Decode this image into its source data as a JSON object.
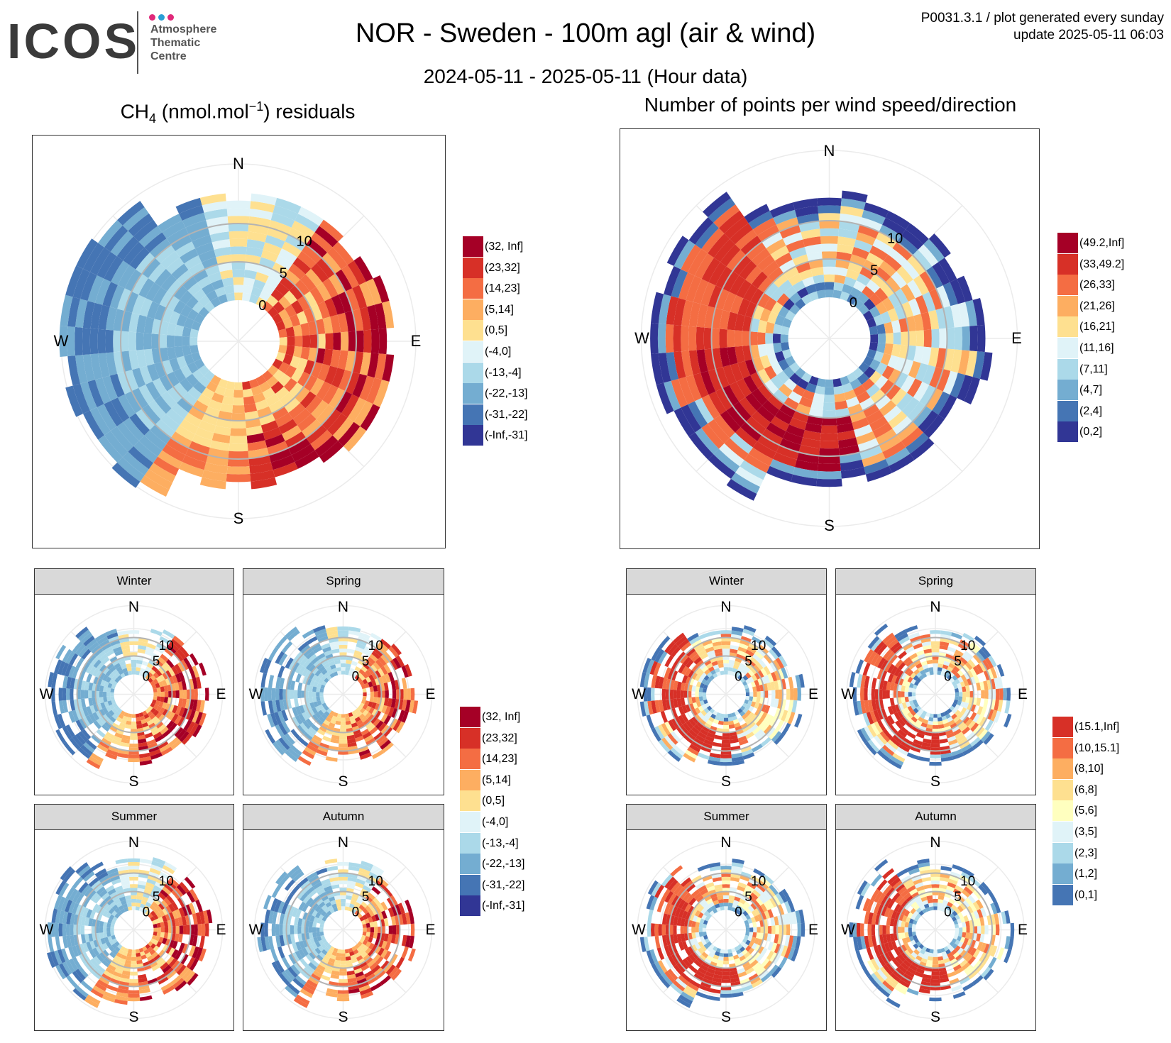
{
  "header": {
    "logo_word": "ICOS",
    "logo_lines": [
      "Atmosphere",
      "Thematic",
      "Centre"
    ],
    "logo_dot_colors": [
      "#e0297a",
      "#2a9fd6",
      "#e0297a"
    ],
    "title": "NOR - Sweden - 100m agl (air & wind)",
    "subtitle": "2024-05-11 - 2025-05-11 (Hour data)",
    "meta_line1": "P0031.3.1 / plot generated every sunday",
    "meta_line2": "update  2025-05-11 06:03"
  },
  "panels": {
    "left_title_prefix": "CH",
    "left_title_sub": "4",
    "left_title_mid": " (nmol.mol",
    "left_title_sup": "−1",
    "left_title_suffix": ") residuals",
    "right_title": "Number of points per wind speed/direction",
    "compass": {
      "n": "N",
      "e": "E",
      "s": "S",
      "w": "W"
    },
    "ring_labels": [
      "0",
      "5",
      "10"
    ],
    "seasons": [
      "Winter",
      "Spring",
      "Summer",
      "Autumn"
    ]
  },
  "legends": {
    "residuals": {
      "labels": [
        "(32, Inf]",
        "(23,32]",
        "(14,23]",
        "(5,14]",
        "(0,5]",
        "(-4,0]",
        "(-13,-4]",
        "(-22,-13]",
        "(-31,-22]",
        "(-Inf,-31]"
      ],
      "colors": [
        "#a50026",
        "#d73027",
        "#f46d43",
        "#fdae61",
        "#fee090",
        "#e0f3f8",
        "#abd9e9",
        "#74add1",
        "#4575b4",
        "#313695"
      ]
    },
    "counts_annual": {
      "labels": [
        "(49.2,Inf]",
        "(33,49.2]",
        "(26,33]",
        "(21,26]",
        "(16,21]",
        "(11,16]",
        "(7,11]",
        "(4,7]",
        "(2,4]",
        "(0,2]"
      ],
      "colors": [
        "#a50026",
        "#d73027",
        "#f46d43",
        "#fdae61",
        "#fee090",
        "#e0f3f8",
        "#abd9e9",
        "#74add1",
        "#4575b4",
        "#313695"
      ]
    },
    "counts_seasonal": {
      "labels": [
        "(15.1,Inf]",
        "(10,15.1]",
        "(8,10]",
        "(6,8]",
        "(5,6]",
        "(3,5]",
        "(2,3]",
        "(1,2]",
        "(0,1]"
      ],
      "colors": [
        "#d73027",
        "#f46d43",
        "#fdae61",
        "#fee090",
        "#ffffbf",
        "#e0f3f8",
        "#abd9e9",
        "#74add1",
        "#4575b4"
      ]
    }
  },
  "chart_data": [
    {
      "type": "heatmap",
      "projection": "polar",
      "title": "CH4 (nmol.mol-1) residuals",
      "theta": "wind direction",
      "r": "wind speed",
      "r_ticks": [
        0,
        5,
        10
      ],
      "direction_bins": 36,
      "value_classes": [
        "(32, Inf]",
        "(23,32]",
        "(14,23]",
        "(5,14]",
        "(0,5]",
        "(-4,0]",
        "(-13,-4]",
        "(-22,-13]",
        "(-31,-22]",
        "(-Inf,-31]"
      ],
      "pattern_sectors": [
        {
          "from_deg": 30,
          "to_deg": 170,
          "class": "(14,23]"
        },
        {
          "from_deg": 60,
          "to_deg": 120,
          "class": "(32, Inf]"
        },
        {
          "from_deg": 150,
          "to_deg": 210,
          "class": "(5,14]"
        },
        {
          "from_deg": 210,
          "to_deg": 350,
          "class": "(-13,-4]"
        }
      ]
    },
    {
      "type": "heatmap",
      "projection": "polar",
      "title": "Number of points per wind speed/direction",
      "theta": "wind direction",
      "r": "wind speed",
      "r_ticks": [
        0,
        5,
        10
      ],
      "direction_bins": 36,
      "value_classes": [
        "(49.2,Inf]",
        "(33,49.2]",
        "(26,33]",
        "(21,26]",
        "(16,21]",
        "(11,16]",
        "(7,11]",
        "(4,7]",
        "(2,4]",
        "(0,2]"
      ],
      "pattern_sectors": [
        {
          "from_deg": 170,
          "to_deg": 260,
          "class": "(49.2,Inf]"
        },
        {
          "from_deg": 250,
          "to_deg": 330,
          "class": "(33,49.2]"
        }
      ]
    },
    {
      "type": "heatmap",
      "projection": "polar",
      "facets": [
        "Winter",
        "Spring",
        "Summer",
        "Autumn"
      ],
      "measure": "CH4 residuals",
      "r_ticks": [
        0,
        5,
        10
      ],
      "value_classes": [
        "(32, Inf]",
        "(23,32]",
        "(14,23]",
        "(5,14]",
        "(0,5]",
        "(-4,0]",
        "(-13,-4]",
        "(-22,-13]",
        "(-31,-22]",
        "(-Inf,-31]"
      ]
    },
    {
      "type": "heatmap",
      "projection": "polar",
      "facets": [
        "Winter",
        "Spring",
        "Summer",
        "Autumn"
      ],
      "measure": "Number of points",
      "r_ticks": [
        0,
        5,
        10
      ],
      "value_classes": [
        "(15.1,Inf]",
        "(10,15.1]",
        "(8,10]",
        "(6,8]",
        "(5,6]",
        "(3,5]",
        "(2,3]",
        "(1,2]",
        "(0,1]"
      ]
    }
  ]
}
